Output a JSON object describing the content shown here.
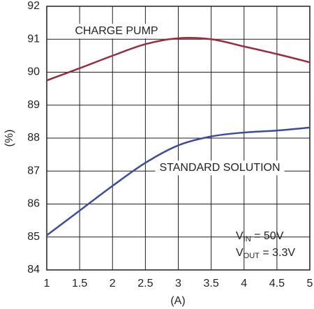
{
  "chart_data": {
    "type": "line",
    "x_label": "(A)",
    "y_label": "(%)",
    "x": [
      1,
      1.5,
      2,
      2.5,
      3,
      3.5,
      4,
      4.5,
      5
    ],
    "series": [
      {
        "name": "CHARGE PUMP",
        "color": "#9b2a3a",
        "values": [
          89.75,
          90.12,
          90.5,
          90.85,
          91.03,
          91.0,
          90.78,
          90.55,
          90.3
        ]
      },
      {
        "name": "STANDARD SOLUTION",
        "color": "#3d4b9c",
        "values": [
          85.05,
          85.8,
          86.55,
          87.25,
          87.78,
          88.05,
          88.17,
          88.23,
          88.32
        ]
      }
    ],
    "conditions": [
      [
        "V",
        "IN",
        " = 50V"
      ],
      [
        "V",
        "OUT",
        " = 3.3V"
      ]
    ],
    "xlim": [
      1,
      5
    ],
    "xticks": [
      1,
      1.5,
      2,
      2.5,
      3,
      3.5,
      4,
      4.5,
      5
    ],
    "ylim": [
      84,
      92
    ],
    "yticks": [
      84,
      85,
      86,
      87,
      88,
      89,
      90,
      91,
      92
    ],
    "grid": true
  }
}
